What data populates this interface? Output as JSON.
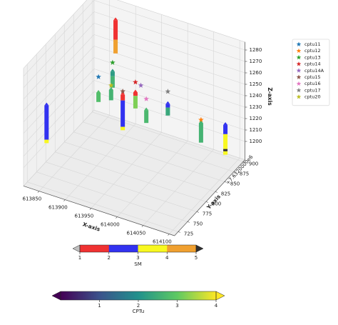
{
  "chart_data": {
    "type": "scatter3d",
    "xlabel": "X-axis",
    "ylabel": "Y-axis",
    "zlabel": "Z-axis",
    "y_offset_label": "+7.6320000e6",
    "xlim": [
      613820,
      614110
    ],
    "ylim": [
      715,
      905
    ],
    "zlim": [
      1184,
      1287
    ],
    "xticks": [
      613850,
      613900,
      613950,
      614000,
      614050,
      614100
    ],
    "yticks": [
      725,
      750,
      775,
      800,
      825,
      850,
      875,
      900
    ],
    "zticks": [
      1200,
      1210,
      1220,
      1230,
      1240,
      1250,
      1260,
      1270,
      1280
    ],
    "grid": true,
    "legend": "upper right",
    "series": [
      {
        "name": "cptu11",
        "color": "#1f77b4",
        "x": 613850,
        "y": 875,
        "z": 1228
      },
      {
        "name": "cptu12",
        "color": "#ff7f0e",
        "x": 614047,
        "y": 875,
        "z": 1220
      },
      {
        "name": "cptu13",
        "color": "#2ca02c",
        "x": 613870,
        "y": 885,
        "z": 1240
      },
      {
        "name": "cptu14",
        "color": "#d62728",
        "x": 613921,
        "y": 875,
        "z": 1234
      },
      {
        "name": "cptu14A",
        "color": "#9467bd",
        "x": 613935,
        "y": 870,
        "z": 1235
      },
      {
        "name": "cptu15",
        "color": "#8c564b",
        "x": 613918,
        "y": 845,
        "z": 1236
      },
      {
        "name": "cptu16",
        "color": "#e377c2",
        "x": 613949,
        "y": 865,
        "z": 1227
      },
      {
        "name": "cptu17",
        "color": "#7f7f7f",
        "x": 613969,
        "y": 895,
        "z": 1226
      },
      {
        "name": "cptu20",
        "color": "#bcbd22",
        "x": 613860,
        "y": 895,
        "z": 1215
      }
    ],
    "columns": [
      {
        "x": 613850,
        "y": 875,
        "segments": [
          {
            "top": 1214,
            "bottom": 1206,
            "cptu": 2.8
          }
        ]
      },
      {
        "x": 613870,
        "y": 885,
        "segments": [
          {
            "top": 1232,
            "bottom": 1228,
            "cptu": 2.2
          },
          {
            "top": 1228,
            "bottom": 1218,
            "cptu": 2.6
          }
        ]
      },
      {
        "x": 613865,
        "y": 900,
        "segments": [
          {
            "top": 1271,
            "bottom": 1254,
            "sm": 1
          },
          {
            "top": 1254,
            "bottom": 1242,
            "sm": 4
          }
        ]
      },
      {
        "x": 613921,
        "y": 875,
        "segments": [
          {
            "top": 1225,
            "bottom": 1222,
            "sm": 1
          },
          {
            "top": 1222,
            "bottom": 1211,
            "cptu": 3.2
          }
        ]
      },
      {
        "x": 613918,
        "y": 845,
        "segments": [
          {
            "top": 1233,
            "bottom": 1228,
            "sm": 1
          },
          {
            "top": 1228,
            "bottom": 1205,
            "sm": 2
          },
          {
            "top": 1205,
            "bottom": 1202,
            "sm": 3
          }
        ]
      },
      {
        "x": 613949,
        "y": 865,
        "segments": [
          {
            "top": 1217,
            "bottom": 1206,
            "cptu": 2.7
          }
        ]
      },
      {
        "x": 613969,
        "y": 895,
        "segments": [
          {
            "top": 1215,
            "bottom": 1212,
            "sm": 2
          },
          {
            "top": 1212,
            "bottom": 1205,
            "cptu": 2.4
          }
        ]
      },
      {
        "x": 614047,
        "y": 875,
        "segments": [
          {
            "top": 1217,
            "bottom": 1200,
            "cptu": 2.6
          }
        ]
      },
      {
        "x": 614076,
        "y": 900,
        "segments": [
          {
            "top": 1211,
            "bottom": 1203,
            "sm": 2
          },
          {
            "top": 1203,
            "bottom": 1190,
            "sm": 3
          },
          {
            "top": 1190,
            "bottom": 1188,
            "sm": 5
          },
          {
            "top": 1188,
            "bottom": 1185,
            "sm": 3
          }
        ]
      },
      {
        "x": 613850,
        "y": 735,
        "segments": [
          {
            "top": 1252,
            "bottom": 1222,
            "sm": 2
          },
          {
            "top": 1222,
            "bottom": 1219,
            "sm": 3
          }
        ]
      },
      {
        "x": 613860,
        "y": 895,
        "segments": [
          {
            "top": 1211,
            "bottom": 1202,
            "cptu": 2.6
          }
        ]
      }
    ],
    "colorbars": [
      {
        "label": "SM",
        "lim": [
          1,
          5
        ],
        "ticks": [
          1,
          2,
          3,
          4,
          5
        ],
        "colors": [
          "#f03232",
          "#3232f0",
          "#f8f820",
          "#f0a030"
        ],
        "under": "#c0c0c0",
        "over": "#303030"
      },
      {
        "label": "CPTu",
        "lim": [
          0,
          4
        ],
        "ticks": [
          1,
          2,
          3,
          4
        ],
        "colormap": "viridis"
      }
    ]
  }
}
